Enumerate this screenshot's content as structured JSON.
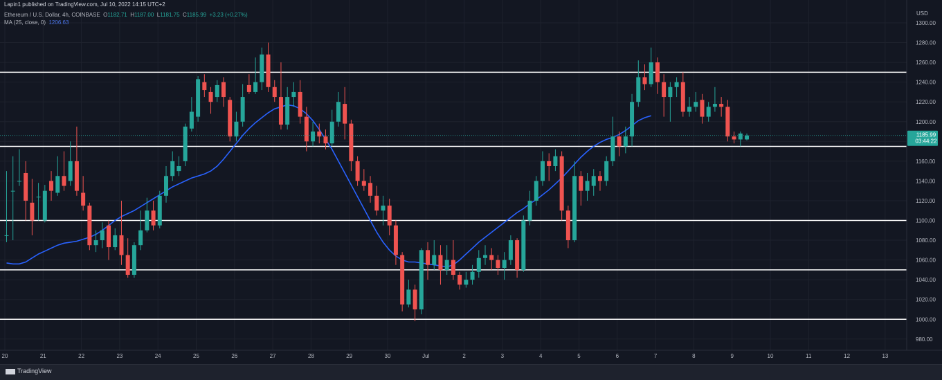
{
  "header": {
    "published": "Lapin1 published on TradingView.com, Jul 10, 2022 14:15 UTC+2",
    "symbol": "Ethereum / U.S. Dollar, 4h, COINBASE",
    "o_label": "O",
    "o_val": "1182.71",
    "h_label": "H",
    "h_val": "1187.00",
    "l_label": "L",
    "l_val": "1181.75",
    "c_label": "C",
    "c_val": "1185.99",
    "change": "+3.23 (+0.27%)",
    "ma_label": "MA (25, close, 0)",
    "ma_val": "1206.63"
  },
  "footer": {
    "brand": "TradingView"
  },
  "colors": {
    "up": "#26a69a",
    "down": "#ef5350",
    "ma": "#2962ff",
    "level": "#ffffff",
    "background": "#131722"
  },
  "chart_data": {
    "type": "candlestick",
    "currency": "USD",
    "ylim": [
      965,
      1310
    ],
    "y_ticks": [
      "1300.00",
      "1280.00",
      "1260.00",
      "1240.00",
      "1220.00",
      "1200.00",
      "1180.00",
      "1160.00",
      "1140.00",
      "1120.00",
      "1100.00",
      "1080.00",
      "1060.00",
      "1040.00",
      "1020.00",
      "1000.00",
      "980.00"
    ],
    "x_ticks": [
      "20",
      "21",
      "22",
      "23",
      "24",
      "25",
      "26",
      "27",
      "28",
      "29",
      "30",
      "Jul",
      "2",
      "3",
      "4",
      "5",
      "6",
      "7",
      "8",
      "9",
      "10",
      "11",
      "12",
      "13"
    ],
    "horizontal_levels": [
      "1250.00",
      "1175.00",
      "1100.00",
      "1050.00",
      "1000.00"
    ],
    "price_label": "1185.99",
    "countdown": "03:44:22",
    "ma_series": [
      1057,
      1056,
      1056,
      1058,
      1062,
      1066,
      1069,
      1072,
      1075,
      1077,
      1078,
      1079,
      1081,
      1083,
      1086,
      1090,
      1095,
      1100,
      1104,
      1107,
      1110,
      1114,
      1118,
      1122,
      1126,
      1130,
      1134,
      1137,
      1140,
      1143,
      1145,
      1147,
      1150,
      1155,
      1162,
      1170,
      1178,
      1186,
      1193,
      1199,
      1204,
      1209,
      1213,
      1215,
      1217,
      1216,
      1213,
      1208,
      1201,
      1192,
      1182,
      1172,
      1160,
      1148,
      1136,
      1124,
      1112,
      1100,
      1088,
      1078,
      1070,
      1064,
      1060,
      1058,
      1058,
      1057,
      1056,
      1055,
      1054,
      1053,
      1055,
      1060,
      1066,
      1072,
      1078,
      1083,
      1088,
      1093,
      1098,
      1103,
      1108,
      1112,
      1117,
      1121,
      1126,
      1131,
      1137,
      1143,
      1150,
      1157,
      1164,
      1170,
      1175,
      1179,
      1182,
      1184,
      1187,
      1191,
      1196,
      1201,
      1204,
      1206
    ],
    "candles": [
      [
        1085,
        1085,
        1150,
        1078
      ],
      [
        1130,
        1130,
        1165,
        1080
      ],
      [
        1140,
        1140,
        1172,
        1135
      ],
      [
        1148,
        1120,
        1160,
        1100
      ],
      [
        1118,
        1100,
        1142,
        1085
      ],
      [
        1124,
        1124,
        1138,
        1100
      ],
      [
        1100,
        1130,
        1136,
        1098
      ],
      [
        1140,
        1130,
        1150,
        1120
      ],
      [
        1128,
        1145,
        1165,
        1125
      ],
      [
        1145,
        1135,
        1170,
        1130
      ],
      [
        1140,
        1160,
        1180,
        1135
      ],
      [
        1160,
        1130,
        1195,
        1125
      ],
      [
        1128,
        1115,
        1145,
        1110
      ],
      [
        1115,
        1075,
        1118,
        1070
      ],
      [
        1075,
        1080,
        1090,
        1068
      ],
      [
        1080,
        1090,
        1098,
        1072
      ],
      [
        1095,
        1073,
        1100,
        1060
      ],
      [
        1073,
        1085,
        1092,
        1070
      ],
      [
        1085,
        1065,
        1120,
        1055
      ],
      [
        1065,
        1045,
        1082,
        1042
      ],
      [
        1045,
        1075,
        1078,
        1042
      ],
      [
        1075,
        1090,
        1110,
        1070
      ],
      [
        1090,
        1110,
        1123,
        1088
      ],
      [
        1110,
        1095,
        1120,
        1090
      ],
      [
        1095,
        1125,
        1130,
        1092
      ],
      [
        1125,
        1145,
        1155,
        1118
      ],
      [
        1145,
        1160,
        1170,
        1140
      ],
      [
        1150,
        1155,
        1165,
        1145
      ],
      [
        1160,
        1195,
        1198,
        1155
      ],
      [
        1193,
        1210,
        1225,
        1190
      ],
      [
        1205,
        1243,
        1246,
        1200
      ],
      [
        1240,
        1232,
        1248,
        1225
      ],
      [
        1230,
        1220,
        1235,
        1208
      ],
      [
        1225,
        1237,
        1242,
        1220
      ],
      [
        1240,
        1225,
        1245,
        1215
      ],
      [
        1222,
        1185,
        1225,
        1180
      ],
      [
        1185,
        1200,
        1210,
        1180
      ],
      [
        1200,
        1225,
        1238,
        1195
      ],
      [
        1237,
        1230,
        1248,
        1228
      ],
      [
        1230,
        1240,
        1265,
        1228
      ],
      [
        1240,
        1268,
        1275,
        1232
      ],
      [
        1268,
        1235,
        1280,
        1230
      ],
      [
        1235,
        1225,
        1242,
        1220
      ],
      [
        1225,
        1197,
        1260,
        1192
      ],
      [
        1197,
        1225,
        1235,
        1192
      ],
      [
        1225,
        1230,
        1240,
        1215
      ],
      [
        1230,
        1205,
        1242,
        1198
      ],
      [
        1205,
        1180,
        1215,
        1170
      ],
      [
        1180,
        1190,
        1200,
        1175
      ],
      [
        1190,
        1185,
        1198,
        1178
      ],
      [
        1185,
        1178,
        1192,
        1172
      ],
      [
        1178,
        1200,
        1212,
        1175
      ],
      [
        1200,
        1220,
        1230,
        1195
      ],
      [
        1218,
        1198,
        1235,
        1182
      ],
      [
        1198,
        1160,
        1202,
        1150
      ],
      [
        1160,
        1140,
        1165,
        1135
      ],
      [
        1140,
        1135,
        1152,
        1130
      ],
      [
        1138,
        1125,
        1145,
        1118
      ],
      [
        1125,
        1110,
        1135,
        1105
      ],
      [
        1110,
        1115,
        1125,
        1095
      ],
      [
        1115,
        1095,
        1122,
        1085
      ],
      [
        1095,
        1065,
        1100,
        1055
      ],
      [
        1065,
        1015,
        1068,
        1008
      ],
      [
        1015,
        1030,
        1040,
        1012
      ],
      [
        1030,
        1010,
        1035,
        998
      ],
      [
        1010,
        1070,
        1072,
        1005
      ],
      [
        1070,
        1055,
        1078,
        1040
      ],
      [
        1055,
        1065,
        1080,
        1050
      ],
      [
        1065,
        1050,
        1075,
        1035
      ],
      [
        1050,
        1060,
        1075,
        1045
      ],
      [
        1060,
        1045,
        1080,
        1040
      ],
      [
        1045,
        1035,
        1048,
        1030
      ],
      [
        1035,
        1040,
        1048,
        1032
      ],
      [
        1040,
        1048,
        1055,
        1035
      ],
      [
        1048,
        1062,
        1070,
        1042
      ],
      [
        1062,
        1065,
        1075,
        1055
      ],
      [
        1065,
        1060,
        1072,
        1050
      ],
      [
        1060,
        1052,
        1065,
        1045
      ],
      [
        1052,
        1060,
        1068,
        1040
      ],
      [
        1060,
        1080,
        1085,
        1055
      ],
      [
        1080,
        1050,
        1082,
        1042
      ],
      [
        1050,
        1100,
        1105,
        1048
      ],
      [
        1100,
        1120,
        1130,
        1095
      ],
      [
        1120,
        1140,
        1145,
        1115
      ],
      [
        1140,
        1160,
        1170,
        1135
      ],
      [
        1160,
        1155,
        1168,
        1140
      ],
      [
        1155,
        1165,
        1172,
        1150
      ],
      [
        1165,
        1110,
        1170,
        1100
      ],
      [
        1110,
        1080,
        1115,
        1072
      ],
      [
        1080,
        1145,
        1160,
        1078
      ],
      [
        1145,
        1130,
        1150,
        1115
      ],
      [
        1130,
        1140,
        1148,
        1120
      ],
      [
        1135,
        1145,
        1152,
        1125
      ],
      [
        1145,
        1140,
        1150,
        1130
      ],
      [
        1140,
        1160,
        1165,
        1135
      ],
      [
        1160,
        1185,
        1205,
        1155
      ],
      [
        1185,
        1175,
        1190,
        1165
      ],
      [
        1175,
        1185,
        1195,
        1168
      ],
      [
        1185,
        1220,
        1228,
        1175
      ],
      [
        1220,
        1245,
        1262,
        1215
      ],
      [
        1245,
        1238,
        1258,
        1232
      ],
      [
        1238,
        1260,
        1275,
        1235
      ],
      [
        1260,
        1240,
        1265,
        1228
      ],
      [
        1240,
        1225,
        1248,
        1205
      ],
      [
        1225,
        1235,
        1240,
        1200
      ],
      [
        1235,
        1240,
        1245,
        1225
      ],
      [
        1240,
        1210,
        1250,
        1205
      ],
      [
        1210,
        1215,
        1225,
        1205
      ],
      [
        1215,
        1220,
        1230,
        1210
      ],
      [
        1222,
        1205,
        1228,
        1198
      ],
      [
        1205,
        1215,
        1220,
        1200
      ],
      [
        1215,
        1218,
        1235,
        1210
      ],
      [
        1218,
        1215,
        1225,
        1205
      ],
      [
        1215,
        1185,
        1222,
        1180
      ],
      [
        1185,
        1182,
        1190,
        1178
      ],
      [
        1182,
        1188,
        1190,
        1175
      ],
      [
        1182,
        1186,
        1188,
        1181
      ]
    ]
  }
}
